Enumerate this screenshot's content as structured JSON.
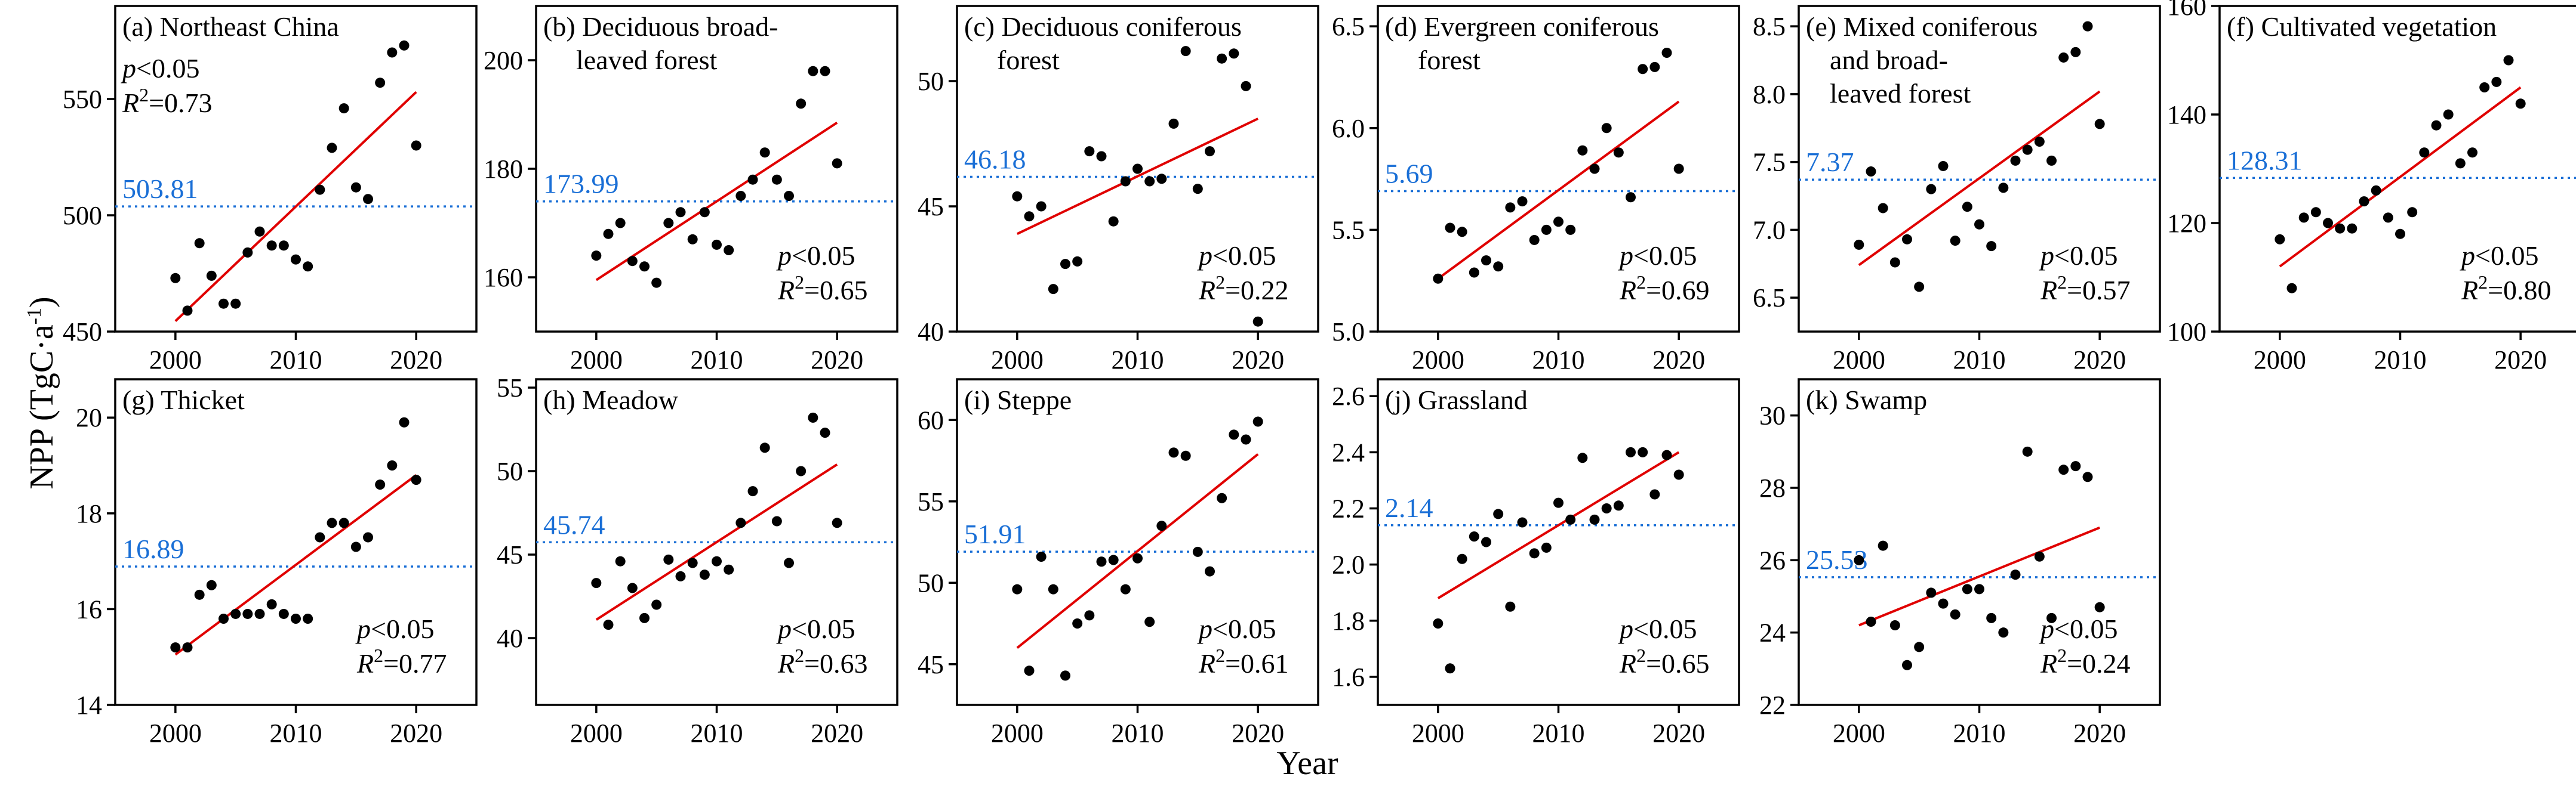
{
  "colors": {
    "mean": "#1a6fd6",
    "trend": "#e00000",
    "points": "#000000"
  },
  "axis_titles": {
    "x": "Year",
    "y": "NPP (TgC·a",
    "y_sup": "-1",
    "y_close": ")"
  },
  "chart_data": [
    {
      "type": "scatter",
      "title_lines": [
        "(a) Northeast China"
      ],
      "ylim": [
        450,
        590
      ],
      "yticks": [
        450,
        500,
        550
      ],
      "xlim": [
        1995,
        2025
      ],
      "xticks": [
        2000,
        2010,
        2020
      ],
      "x": [
        2000,
        2001,
        2002,
        2003,
        2004,
        2005,
        2006,
        2007,
        2008,
        2009,
        2010,
        2011,
        2012,
        2013,
        2014,
        2015,
        2016,
        2017,
        2018,
        2019,
        2020
      ],
      "values": [
        473,
        459,
        488,
        474,
        462,
        462,
        484,
        493,
        487,
        487,
        481,
        478,
        511,
        529,
        546,
        512,
        507,
        557,
        570,
        573,
        530
      ],
      "mean": 503.81,
      "mean_label": "503.81",
      "trend": [
        454.5,
        553
      ],
      "p_label": "<0.05",
      "r2_label": "=0.73",
      "stats_pos": "top-left"
    },
    {
      "type": "scatter",
      "title_lines": [
        "(b) Deciduous broad-",
        "leaved forest"
      ],
      "ylim": [
        150,
        210
      ],
      "yticks": [
        160,
        180,
        200
      ],
      "xlim": [
        1995,
        2025
      ],
      "xticks": [
        2000,
        2010,
        2020
      ],
      "x": [
        2000,
        2001,
        2002,
        2003,
        2004,
        2005,
        2006,
        2007,
        2008,
        2009,
        2010,
        2011,
        2012,
        2013,
        2014,
        2015,
        2016,
        2017,
        2018,
        2019,
        2020
      ],
      "values": [
        164,
        168,
        170,
        163,
        162,
        159,
        170,
        172,
        167,
        172,
        166,
        165,
        175,
        178,
        183,
        178,
        175,
        192,
        198,
        198,
        181
      ],
      "mean": 173.99,
      "mean_label": "173.99",
      "trend": [
        159.5,
        188.5
      ],
      "p_label": "<0.05",
      "r2_label": "=0.65",
      "stats_pos": "bottom-right"
    },
    {
      "type": "scatter",
      "title_lines": [
        "(c) Deciduous coniferous",
        "forest"
      ],
      "ylim": [
        40,
        53
      ],
      "yticks": [
        40,
        45,
        50
      ],
      "xlim": [
        1995,
        2025
      ],
      "xticks": [
        2000,
        2010,
        2020
      ],
      "x": [
        2000,
        2001,
        2002,
        2003,
        2004,
        2005,
        2006,
        2007,
        2008,
        2009,
        2010,
        2011,
        2012,
        2013,
        2014,
        2015,
        2016,
        2017,
        2018,
        2019,
        2020
      ],
      "values": [
        45.4,
        44.6,
        45.0,
        41.7,
        42.7,
        42.8,
        47.2,
        47.0,
        44.4,
        46.0,
        46.5,
        46.0,
        46.1,
        48.3,
        51.2,
        45.7,
        47.2,
        50.9,
        51.1,
        49.8,
        40.4
      ],
      "mean": 46.18,
      "mean_label": "46.18",
      "trend": [
        43.9,
        48.5
      ],
      "p_label": "<0.05",
      "r2_label": "=0.22",
      "stats_pos": "bottom-right"
    },
    {
      "type": "scatter",
      "title_lines": [
        "(d) Evergreen coniferous",
        "forest"
      ],
      "ylim": [
        5.0,
        6.6
      ],
      "yticks": [
        5.0,
        5.5,
        6.0,
        6.5
      ],
      "xlim": [
        1995,
        2025
      ],
      "xticks": [
        2000,
        2010,
        2020
      ],
      "x": [
        2000,
        2001,
        2002,
        2003,
        2004,
        2005,
        2006,
        2007,
        2008,
        2009,
        2010,
        2011,
        2012,
        2013,
        2014,
        2015,
        2016,
        2017,
        2018,
        2019,
        2020
      ],
      "values": [
        5.26,
        5.51,
        5.49,
        5.29,
        5.35,
        5.32,
        5.61,
        5.64,
        5.45,
        5.5,
        5.54,
        5.5,
        5.89,
        5.8,
        6.0,
        5.88,
        5.66,
        6.29,
        6.3,
        6.37,
        5.8
      ],
      "mean": 5.69,
      "mean_label": "5.69",
      "trend": [
        5.26,
        6.13
      ],
      "p_label": "<0.05",
      "r2_label": "=0.69",
      "stats_pos": "bottom-right"
    },
    {
      "type": "scatter",
      "title_lines": [
        "(e) Mixed coniferous",
        "and broad-",
        "leaved forest"
      ],
      "ylim": [
        6.25,
        8.65
      ],
      "yticks": [
        6.5,
        7.0,
        7.5,
        8.0,
        8.5
      ],
      "xlim": [
        1995,
        2025
      ],
      "xticks": [
        2000,
        2010,
        2020
      ],
      "x": [
        2000,
        2001,
        2002,
        2003,
        2004,
        2005,
        2006,
        2007,
        2008,
        2009,
        2010,
        2011,
        2012,
        2013,
        2014,
        2015,
        2016,
        2017,
        2018,
        2019,
        2020
      ],
      "values": [
        6.89,
        7.43,
        7.16,
        6.76,
        6.93,
        6.58,
        7.3,
        7.47,
        6.92,
        7.17,
        7.04,
        6.88,
        7.31,
        7.51,
        7.59,
        7.65,
        7.51,
        8.27,
        8.31,
        8.5,
        7.78
      ],
      "mean": 7.37,
      "mean_label": "7.37",
      "trend": [
        6.74,
        8.02
      ],
      "p_label": "<0.05",
      "r2_label": "=0.57",
      "stats_pos": "bottom-right"
    },
    {
      "type": "scatter",
      "title_lines": [
        "(f) Cultivated vegetation"
      ],
      "ylim": [
        100,
        160
      ],
      "yticks": [
        100,
        120,
        140,
        160
      ],
      "xlim": [
        1995,
        2025
      ],
      "xticks": [
        2000,
        2010,
        2020
      ],
      "x": [
        2000,
        2001,
        2002,
        2003,
        2004,
        2005,
        2006,
        2007,
        2008,
        2009,
        2010,
        2011,
        2012,
        2013,
        2014,
        2015,
        2016,
        2017,
        2018,
        2019,
        2020
      ],
      "values": [
        117,
        108,
        121,
        122,
        120,
        119,
        119,
        124,
        126,
        121,
        118,
        122,
        133,
        138,
        140,
        131,
        133,
        145,
        146,
        150,
        142
      ],
      "mean": 128.31,
      "mean_label": "128.31",
      "trend": [
        112,
        145
      ],
      "p_label": "<0.05",
      "r2_label": "=0.80",
      "stats_pos": "bottom-right"
    },
    {
      "type": "scatter",
      "title_lines": [
        "(g) Thicket"
      ],
      "ylim": [
        14,
        20.8
      ],
      "yticks": [
        14,
        16,
        18,
        20
      ],
      "xlim": [
        1995,
        2025
      ],
      "xticks": [
        2000,
        2010,
        2020
      ],
      "x": [
        2000,
        2001,
        2002,
        2003,
        2004,
        2005,
        2006,
        2007,
        2008,
        2009,
        2010,
        2011,
        2012,
        2013,
        2014,
        2015,
        2016,
        2017,
        2018,
        2019,
        2020
      ],
      "values": [
        15.2,
        15.2,
        16.3,
        16.5,
        15.8,
        15.9,
        15.9,
        15.9,
        16.1,
        15.9,
        15.8,
        15.8,
        17.5,
        17.8,
        17.8,
        17.3,
        17.5,
        18.6,
        19.0,
        19.9,
        18.7
      ],
      "mean": 16.89,
      "mean_label": "16.89",
      "trend": [
        15.05,
        18.8
      ],
      "p_label": "<0.05",
      "r2_label": "=0.77",
      "stats_pos": "bottom-right"
    },
    {
      "type": "scatter",
      "title_lines": [
        "(h) Meadow"
      ],
      "ylim": [
        36,
        55.5
      ],
      "yticks": [
        40,
        45,
        50,
        55
      ],
      "xlim": [
        1995,
        2025
      ],
      "xticks": [
        2000,
        2010,
        2020
      ],
      "x": [
        2000,
        2001,
        2002,
        2003,
        2004,
        2005,
        2006,
        2007,
        2008,
        2009,
        2010,
        2011,
        2012,
        2013,
        2014,
        2015,
        2016,
        2017,
        2018,
        2019,
        2020
      ],
      "values": [
        43.3,
        40.8,
        44.6,
        43.0,
        41.2,
        42.0,
        44.7,
        43.7,
        44.5,
        43.8,
        44.6,
        44.1,
        46.9,
        48.8,
        51.4,
        47.0,
        44.5,
        50.0,
        53.2,
        52.3,
        46.9
      ],
      "mean": 45.74,
      "mean_label": "45.74",
      "trend": [
        41.1,
        50.4
      ],
      "p_label": "<0.05",
      "r2_label": "=0.63",
      "stats_pos": "bottom-right"
    },
    {
      "type": "scatter",
      "title_lines": [
        "(i) Steppe"
      ],
      "ylim": [
        42.5,
        62.5
      ],
      "yticks": [
        45,
        50,
        55,
        60
      ],
      "xlim": [
        1995,
        2025
      ],
      "xticks": [
        2000,
        2010,
        2020
      ],
      "x": [
        2000,
        2001,
        2002,
        2003,
        2004,
        2005,
        2006,
        2007,
        2008,
        2009,
        2010,
        2011,
        2012,
        2013,
        2014,
        2015,
        2016,
        2017,
        2018,
        2019,
        2020
      ],
      "values": [
        49.6,
        44.6,
        51.6,
        49.6,
        44.3,
        47.5,
        48.0,
        51.3,
        51.4,
        49.6,
        51.5,
        47.6,
        53.5,
        58.0,
        57.8,
        51.9,
        50.7,
        55.2,
        59.1,
        58.8,
        59.9
      ],
      "mean": 51.91,
      "mean_label": "51.91",
      "trend": [
        46.0,
        57.9
      ],
      "p_label": "<0.05",
      "r2_label": "=0.61",
      "stats_pos": "bottom-right"
    },
    {
      "type": "scatter",
      "title_lines": [
        "(j) Grassland"
      ],
      "ylim": [
        1.5,
        2.66
      ],
      "yticks": [
        1.6,
        1.8,
        2.0,
        2.2,
        2.4,
        2.6
      ],
      "xlim": [
        1995,
        2025
      ],
      "xticks": [
        2000,
        2010,
        2020
      ],
      "x": [
        2000,
        2001,
        2002,
        2003,
        2004,
        2005,
        2006,
        2007,
        2008,
        2009,
        2010,
        2011,
        2012,
        2013,
        2014,
        2015,
        2016,
        2017,
        2018,
        2019,
        2020
      ],
      "values": [
        1.79,
        1.63,
        2.02,
        2.1,
        2.08,
        2.18,
        1.85,
        2.15,
        2.04,
        2.06,
        2.22,
        2.16,
        2.38,
        2.16,
        2.2,
        2.21,
        2.4,
        2.4,
        2.25,
        2.39,
        2.32
      ],
      "mean": 2.14,
      "mean_label": "2.14",
      "trend": [
        1.88,
        2.4
      ],
      "p_label": "<0.05",
      "r2_label": "=0.65",
      "stats_pos": "bottom-right"
    },
    {
      "type": "scatter",
      "title_lines": [
        "(k) Swamp"
      ],
      "ylim": [
        22,
        31
      ],
      "yticks": [
        22,
        24,
        26,
        28,
        30
      ],
      "xlim": [
        1995,
        2025
      ],
      "xticks": [
        2000,
        2010,
        2020
      ],
      "x": [
        2000,
        2001,
        2002,
        2003,
        2004,
        2005,
        2006,
        2007,
        2008,
        2009,
        2010,
        2011,
        2012,
        2013,
        2014,
        2015,
        2016,
        2017,
        2018,
        2019,
        2020
      ],
      "values": [
        26.0,
        24.3,
        26.4,
        24.2,
        23.1,
        23.6,
        25.1,
        24.8,
        24.5,
        25.2,
        25.2,
        24.4,
        24.0,
        25.6,
        29.0,
        26.1,
        24.4,
        28.5,
        28.6,
        28.3,
        24.7
      ],
      "mean": 25.53,
      "mean_label": "25.53",
      "trend": [
        24.2,
        26.9
      ],
      "p_label": "<0.05",
      "r2_label": "=0.24",
      "stats_pos": "bottom-right"
    }
  ]
}
